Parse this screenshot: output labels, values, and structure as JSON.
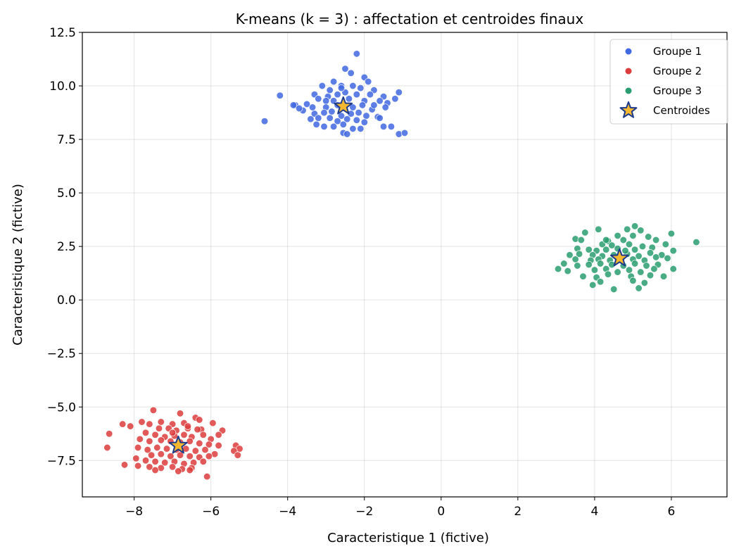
{
  "chart_data": {
    "type": "scatter",
    "title": "K-means (k = 3) : affectation et centroides finaux",
    "xlabel": "Caracteristique 1 (fictive)",
    "ylabel": "Caracteristique 2 (fictive)",
    "xlim": [
      -9.35,
      7.45
    ],
    "ylim": [
      -9.2,
      12.5
    ],
    "xticks": [
      -8,
      -6,
      -4,
      -2,
      0,
      2,
      4,
      6
    ],
    "xtick_labels": [
      "−8",
      "−6",
      "−4",
      "−2",
      "0",
      "2",
      "4",
      "6"
    ],
    "yticks": [
      12.5,
      10.0,
      7.5,
      5.0,
      2.5,
      0.0,
      -2.5,
      -5.0,
      -7.5
    ],
    "ytick_labels": [
      "12.5",
      "10.0",
      "7.5",
      "5.0",
      "2.5",
      "0.0",
      "−2.5",
      "−5.0",
      "−7.5"
    ],
    "grid": true,
    "legend_position": "top-right",
    "series": [
      {
        "name": "Groupe 1",
        "color": "#4169e1",
        "points": [
          [
            -2.2,
            11.5
          ],
          [
            -2.5,
            10.8
          ],
          [
            -2.35,
            10.6
          ],
          [
            -2.0,
            10.4
          ],
          [
            -1.9,
            10.2
          ],
          [
            -2.8,
            10.2
          ],
          [
            -3.1,
            10.0
          ],
          [
            -2.6,
            10.0
          ],
          [
            -2.3,
            10.0
          ],
          [
            -2.1,
            9.9
          ],
          [
            -1.75,
            9.8
          ],
          [
            -1.1,
            9.7
          ],
          [
            -1.5,
            9.5
          ],
          [
            -3.3,
            9.6
          ],
          [
            -2.95,
            9.5
          ],
          [
            -2.7,
            9.6
          ],
          [
            -2.5,
            9.7
          ],
          [
            -2.2,
            9.6
          ],
          [
            -1.85,
            9.6
          ],
          [
            -4.2,
            9.55
          ],
          [
            -3.0,
            9.3
          ],
          [
            -3.2,
            9.4
          ],
          [
            -2.8,
            9.3
          ],
          [
            -2.4,
            9.4
          ],
          [
            -2.0,
            9.3
          ],
          [
            -1.6,
            9.3
          ],
          [
            -1.2,
            9.4
          ],
          [
            -3.8,
            9.1
          ],
          [
            -3.5,
            9.15
          ],
          [
            -3.35,
            9.0
          ],
          [
            -3.0,
            9.0
          ],
          [
            -2.7,
            9.1
          ],
          [
            -2.3,
            9.0
          ],
          [
            -2.05,
            9.1
          ],
          [
            -1.8,
            8.9
          ],
          [
            -1.4,
            9.2
          ],
          [
            -3.6,
            8.85
          ],
          [
            -3.3,
            8.7
          ],
          [
            -3.05,
            8.75
          ],
          [
            -2.85,
            8.8
          ],
          [
            -2.6,
            8.6
          ],
          [
            -2.35,
            8.7
          ],
          [
            -2.15,
            8.75
          ],
          [
            -1.95,
            8.6
          ],
          [
            -1.65,
            8.55
          ],
          [
            -1.45,
            9.0
          ],
          [
            -3.7,
            8.95
          ],
          [
            -3.4,
            8.45
          ],
          [
            -3.2,
            8.5
          ],
          [
            -2.9,
            8.5
          ],
          [
            -2.7,
            8.35
          ],
          [
            -2.45,
            8.45
          ],
          [
            -2.2,
            8.4
          ],
          [
            -2.0,
            8.3
          ],
          [
            -1.6,
            8.5
          ],
          [
            -3.25,
            8.2
          ],
          [
            -3.05,
            8.1
          ],
          [
            -2.8,
            8.1
          ],
          [
            -2.55,
            8.2
          ],
          [
            -2.3,
            8.0
          ],
          [
            -2.1,
            8.0
          ],
          [
            -1.5,
            8.1
          ],
          [
            -1.3,
            8.1
          ],
          [
            -2.55,
            7.8
          ],
          [
            -2.45,
            7.75
          ],
          [
            -1.1,
            7.75
          ],
          [
            -0.95,
            7.8
          ],
          [
            -4.6,
            8.35
          ],
          [
            -3.85,
            9.1
          ],
          [
            -1.75,
            9.1
          ],
          [
            -2.9,
            9.8
          ],
          [
            -2.6,
            9.9
          ]
        ]
      },
      {
        "name": "Groupe 2",
        "color": "#dc3c3c",
        "points": [
          [
            -7.5,
            -5.15
          ],
          [
            -6.8,
            -5.3
          ],
          [
            -6.4,
            -5.5
          ],
          [
            -7.8,
            -5.7
          ],
          [
            -7.3,
            -5.7
          ],
          [
            -7.0,
            -5.8
          ],
          [
            -6.7,
            -5.75
          ],
          [
            -6.3,
            -5.6
          ],
          [
            -5.95,
            -5.75
          ],
          [
            -5.7,
            -6.1
          ],
          [
            -8.3,
            -5.8
          ],
          [
            -8.1,
            -5.9
          ],
          [
            -7.6,
            -5.8
          ],
          [
            -7.35,
            -6.0
          ],
          [
            -7.1,
            -6.0
          ],
          [
            -6.9,
            -6.1
          ],
          [
            -6.6,
            -6.0
          ],
          [
            -6.25,
            -6.05
          ],
          [
            -5.8,
            -6.3
          ],
          [
            -8.65,
            -6.25
          ],
          [
            -7.7,
            -6.2
          ],
          [
            -7.45,
            -6.3
          ],
          [
            -7.2,
            -6.4
          ],
          [
            -6.95,
            -6.35
          ],
          [
            -6.7,
            -6.3
          ],
          [
            -6.5,
            -6.4
          ],
          [
            -6.2,
            -6.3
          ],
          [
            -6.0,
            -6.5
          ],
          [
            -7.85,
            -6.5
          ],
          [
            -7.6,
            -6.6
          ],
          [
            -7.3,
            -6.55
          ],
          [
            -7.05,
            -6.6
          ],
          [
            -6.8,
            -6.65
          ],
          [
            -6.55,
            -6.6
          ],
          [
            -6.3,
            -6.7
          ],
          [
            -6.05,
            -6.75
          ],
          [
            -5.8,
            -6.8
          ],
          [
            -5.35,
            -6.8
          ],
          [
            -5.25,
            -6.95
          ],
          [
            -8.7,
            -6.9
          ],
          [
            -7.9,
            -6.9
          ],
          [
            -7.65,
            -7.0
          ],
          [
            -7.4,
            -6.9
          ],
          [
            -7.15,
            -6.95
          ],
          [
            -6.9,
            -7.0
          ],
          [
            -6.65,
            -6.95
          ],
          [
            -6.4,
            -7.05
          ],
          [
            -6.15,
            -7.0
          ],
          [
            -5.9,
            -7.2
          ],
          [
            -5.4,
            -7.05
          ],
          [
            -7.55,
            -7.25
          ],
          [
            -7.3,
            -7.2
          ],
          [
            -7.05,
            -7.3
          ],
          [
            -6.8,
            -7.25
          ],
          [
            -6.55,
            -7.3
          ],
          [
            -6.3,
            -7.35
          ],
          [
            -6.05,
            -7.3
          ],
          [
            -5.3,
            -7.25
          ],
          [
            -7.95,
            -7.4
          ],
          [
            -7.7,
            -7.5
          ],
          [
            -7.45,
            -7.55
          ],
          [
            -7.2,
            -7.6
          ],
          [
            -6.95,
            -7.55
          ],
          [
            -6.7,
            -7.65
          ],
          [
            -6.45,
            -7.6
          ],
          [
            -6.2,
            -7.55
          ],
          [
            -8.25,
            -7.7
          ],
          [
            -7.9,
            -7.75
          ],
          [
            -7.6,
            -7.8
          ],
          [
            -7.3,
            -7.85
          ],
          [
            -7.0,
            -7.8
          ],
          [
            -6.75,
            -7.9
          ],
          [
            -6.5,
            -7.85
          ],
          [
            -7.45,
            -7.95
          ],
          [
            -6.85,
            -8.0
          ],
          [
            -6.55,
            -7.95
          ],
          [
            -6.1,
            -8.25
          ],
          [
            -6.35,
            -6.05
          ],
          [
            -7.0,
            -6.2
          ],
          [
            -6.6,
            -5.9
          ]
        ]
      },
      {
        "name": "Groupe 3",
        "color": "#2a9d70",
        "points": [
          [
            5.05,
            3.45
          ],
          [
            4.1,
            3.3
          ],
          [
            4.85,
            3.3
          ],
          [
            5.2,
            3.25
          ],
          [
            3.75,
            3.15
          ],
          [
            6.0,
            3.1
          ],
          [
            4.6,
            3.0
          ],
          [
            5.0,
            3.0
          ],
          [
            5.4,
            2.95
          ],
          [
            3.5,
            2.85
          ],
          [
            3.65,
            2.8
          ],
          [
            4.35,
            2.75
          ],
          [
            4.75,
            2.8
          ],
          [
            5.6,
            2.8
          ],
          [
            6.65,
            2.7
          ],
          [
            4.2,
            2.6
          ],
          [
            4.45,
            2.55
          ],
          [
            4.9,
            2.6
          ],
          [
            5.25,
            2.5
          ],
          [
            5.85,
            2.6
          ],
          [
            3.55,
            2.4
          ],
          [
            3.85,
            2.35
          ],
          [
            4.05,
            2.3
          ],
          [
            4.3,
            2.35
          ],
          [
            4.6,
            2.4
          ],
          [
            5.05,
            2.35
          ],
          [
            5.5,
            2.45
          ],
          [
            6.05,
            2.3
          ],
          [
            3.35,
            2.1
          ],
          [
            3.6,
            2.15
          ],
          [
            3.95,
            2.1
          ],
          [
            4.2,
            2.05
          ],
          [
            4.5,
            2.1
          ],
          [
            4.85,
            2.15
          ],
          [
            5.15,
            2.05
          ],
          [
            5.45,
            2.2
          ],
          [
            5.75,
            2.1
          ],
          [
            3.5,
            1.9
          ],
          [
            3.9,
            1.85
          ],
          [
            4.1,
            1.9
          ],
          [
            4.4,
            1.85
          ],
          [
            4.7,
            1.95
          ],
          [
            5.0,
            1.9
          ],
          [
            5.3,
            1.85
          ],
          [
            5.6,
            2.0
          ],
          [
            5.9,
            1.95
          ],
          [
            3.2,
            1.7
          ],
          [
            3.55,
            1.6
          ],
          [
            3.85,
            1.65
          ],
          [
            4.15,
            1.7
          ],
          [
            4.45,
            1.65
          ],
          [
            4.75,
            1.6
          ],
          [
            5.05,
            1.7
          ],
          [
            5.35,
            1.6
          ],
          [
            5.65,
            1.65
          ],
          [
            3.05,
            1.45
          ],
          [
            3.3,
            1.35
          ],
          [
            4.0,
            1.4
          ],
          [
            4.3,
            1.45
          ],
          [
            4.6,
            1.3
          ],
          [
            4.9,
            1.4
          ],
          [
            5.2,
            1.3
          ],
          [
            5.55,
            1.45
          ],
          [
            6.05,
            1.45
          ],
          [
            3.7,
            1.1
          ],
          [
            4.05,
            1.05
          ],
          [
            4.35,
            1.2
          ],
          [
            4.95,
            1.1
          ],
          [
            5.45,
            1.15
          ],
          [
            5.8,
            1.1
          ],
          [
            3.95,
            0.7
          ],
          [
            4.15,
            0.85
          ],
          [
            5.0,
            0.9
          ],
          [
            5.3,
            0.8
          ],
          [
            4.5,
            0.5
          ],
          [
            5.15,
            0.55
          ],
          [
            4.3,
            2.8
          ],
          [
            4.8,
            2.3
          ]
        ]
      }
    ],
    "centroids": {
      "name": "Centroides",
      "color": "#f5b82e",
      "edge_color": "#1e3a8a",
      "points": [
        [
          -2.55,
          9.05
        ],
        [
          -6.85,
          -6.8
        ],
        [
          4.65,
          1.95
        ]
      ]
    }
  }
}
